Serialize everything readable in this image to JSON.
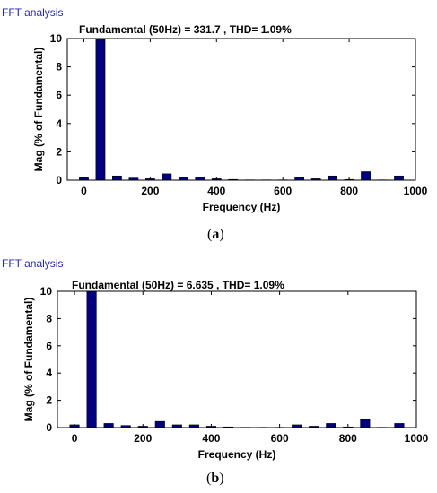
{
  "panels": [
    {
      "app_label": "FFT analysis",
      "caption_prefix": "(",
      "caption_letter": "a",
      "caption_suffix": ")"
    },
    {
      "app_label": "FFT analysis",
      "caption_prefix": "(",
      "caption_letter": "b",
      "caption_suffix": ")"
    }
  ],
  "colors": {
    "bar": "#000080",
    "app_label": "#1f1fd0"
  },
  "chart_data": [
    {
      "type": "bar",
      "title": "Fundamental (50Hz) = 331.7 , THD= 1.09%",
      "xlabel": "Frequency (Hz)",
      "ylabel": "Mag (% of Fundamental)",
      "xlim": [
        -50,
        1000
      ],
      "ylim": [
        0,
        10
      ],
      "xticks": [
        0,
        200,
        400,
        600,
        800,
        1000
      ],
      "yticks": [
        0,
        2,
        4,
        6,
        8,
        10
      ],
      "x": [
        0,
        50,
        100,
        150,
        200,
        250,
        300,
        350,
        400,
        450,
        500,
        550,
        600,
        650,
        700,
        750,
        800,
        850,
        900,
        950
      ],
      "values": [
        0.2,
        10,
        0.3,
        0.15,
        0.1,
        0.45,
        0.2,
        0.2,
        0.1,
        0.05,
        0.02,
        0.02,
        0.02,
        0.2,
        0.1,
        0.3,
        0.05,
        0.6,
        0.02,
        0.3
      ]
    },
    {
      "type": "bar",
      "title": "Fundamental (50Hz) = 6.635 , THD= 1.09%",
      "xlabel": "Frequency (Hz)",
      "ylabel": "Mag (% of Fundamental)",
      "xlim": [
        -50,
        1000
      ],
      "ylim": [
        0,
        10
      ],
      "xticks": [
        0,
        200,
        400,
        600,
        800,
        1000
      ],
      "yticks": [
        0,
        2,
        4,
        6,
        8,
        10
      ],
      "x": [
        0,
        50,
        100,
        150,
        200,
        250,
        300,
        350,
        400,
        450,
        500,
        550,
        600,
        650,
        700,
        750,
        800,
        850,
        900,
        950
      ],
      "values": [
        0.2,
        10,
        0.3,
        0.15,
        0.1,
        0.45,
        0.2,
        0.2,
        0.1,
        0.05,
        0.02,
        0.02,
        0.02,
        0.2,
        0.1,
        0.3,
        0.05,
        0.6,
        0.02,
        0.3
      ]
    }
  ]
}
